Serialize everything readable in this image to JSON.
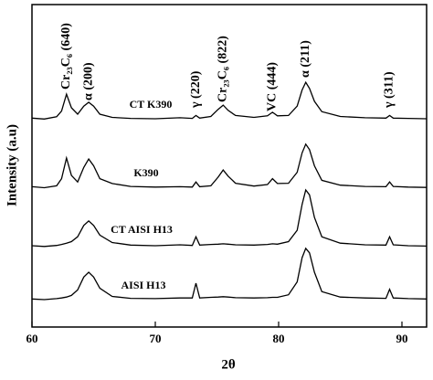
{
  "chart_data": {
    "type": "line",
    "xlabel": "2θ",
    "ylabel": "Intensity (a.u)",
    "xlim": [
      60,
      92
    ],
    "xticks": [
      60,
      70,
      80,
      90
    ],
    "ylim": [
      0,
      100
    ],
    "x": [
      60,
      61,
      62,
      62.4,
      62.8,
      63.2,
      63.7,
      64.2,
      64.6,
      65.0,
      65.5,
      66.5,
      68,
      70,
      72,
      73.0,
      73.3,
      73.6,
      74.5,
      75.1,
      75.5,
      75.9,
      76.5,
      78,
      79.1,
      79.5,
      79.9,
      80.8,
      81.5,
      81.9,
      82.2,
      82.5,
      82.9,
      83.5,
      85,
      87,
      88.7,
      89,
      89.3,
      90.5,
      92
    ],
    "series": [
      {
        "name": "CT K390",
        "color": "#000000",
        "values": [
          64.8,
          64.5,
          65.2,
          67,
          72.2,
          68,
          66,
          68.5,
          69.7,
          68.5,
          66,
          65,
          64.7,
          64.6,
          64.9,
          64.7,
          65.6,
          64.8,
          65.3,
          67.5,
          68.8,
          67.2,
          65.6,
          65,
          65.5,
          66.6,
          65.5,
          65.6,
          68.5,
          73.5,
          75.9,
          74,
          70,
          66.8,
          65.3,
          64.9,
          64.8,
          65.6,
          64.8,
          64.7,
          64.6
        ]
      },
      {
        "name": "K390",
        "color": "#000000",
        "values": [
          43.5,
          43.2,
          43.8,
          46,
          52.4,
          47,
          45,
          49.5,
          52.1,
          50,
          46,
          44.5,
          43.6,
          43.4,
          43.5,
          43.4,
          45,
          43.5,
          43.8,
          46.5,
          48.7,
          46.8,
          44.6,
          43.7,
          44.2,
          46,
          44.5,
          44.6,
          48,
          54,
          56.7,
          55,
          50,
          45.5,
          44,
          43.6,
          43.5,
          45,
          43.6,
          43.4,
          43.3
        ]
      },
      {
        "name": "CT AISI H13",
        "color": "#000000",
        "values": [
          25.2,
          25,
          25.3,
          25.6,
          26,
          26.5,
          28,
          31.5,
          32.9,
          31.5,
          28.5,
          26.2,
          25.4,
          25.2,
          25.5,
          25.3,
          28,
          25.4,
          25.6,
          25.7,
          25.8,
          25.7,
          25.5,
          25.4,
          25.6,
          25.8,
          25.7,
          26.5,
          30,
          38,
          42.5,
          41,
          34,
          28,
          26,
          25.5,
          25.4,
          28,
          25.5,
          25.2,
          25.1
        ]
      },
      {
        "name": "AISI H13",
        "color": "#000000",
        "values": [
          8.7,
          8.5,
          8.8,
          9,
          9.3,
          9.8,
          11.5,
          15.5,
          17,
          15.5,
          12,
          9.5,
          8.9,
          8.8,
          9,
          9,
          13.6,
          9,
          9.2,
          9.3,
          9.4,
          9.3,
          9.1,
          9,
          9.1,
          9.2,
          9.2,
          10,
          14,
          21.5,
          24.4,
          23,
          17,
          11,
          9.3,
          9,
          8.9,
          11.7,
          9,
          8.8,
          8.7
        ]
      }
    ],
    "annotations": [
      {
        "text": "Cr₂₃C₆ (640)",
        "x": 62.8
      },
      {
        "text": "α (200)",
        "x": 64.6
      },
      {
        "text": "γ (220)",
        "x": 73.3
      },
      {
        "text": "Cr₂₃C₆ (822)",
        "x": 75.5
      },
      {
        "text": "VC (444)",
        "x": 79.5
      },
      {
        "text": "α (211)",
        "x": 82.2
      },
      {
        "text": "γ (311)",
        "x": 89
      }
    ]
  }
}
